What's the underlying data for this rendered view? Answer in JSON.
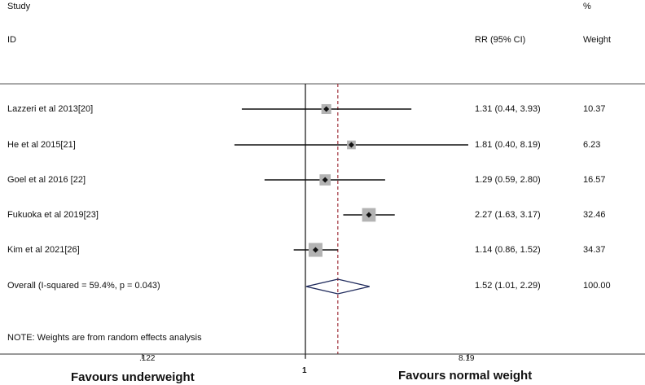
{
  "header": {
    "study_line1": "Study",
    "study_line2": "ID",
    "rr_label": "RR (95% CI)",
    "weight_line1": "%",
    "weight_line2": "Weight"
  },
  "chart_data": {
    "type": "forest",
    "effect_measure": "RR",
    "null_value": 1,
    "overall_line_value": 1.52,
    "x_scale": "log",
    "xlim": [
      0.122,
      8.19
    ],
    "x_ticks": [
      {
        "value": 0.122,
        "label": ".122"
      },
      {
        "value": 1,
        "label": "1"
      },
      {
        "value": 8.19,
        "label": "8.19"
      }
    ],
    "x_left_label": "Favours underweight",
    "x_right_label": "Favours normal weight",
    "studies": [
      {
        "label": "Lazzeri et al  2013[20]",
        "rr": 1.31,
        "lower": 0.44,
        "upper": 3.93,
        "ci_text": "1.31 (0.44, 3.93)",
        "weight": 10.37,
        "weight_text": "10.37"
      },
      {
        "label": "He et al 2015[21]",
        "rr": 1.81,
        "lower": 0.4,
        "upper": 8.19,
        "ci_text": "1.81 (0.40, 8.19)",
        "weight": 6.23,
        "weight_text": "6.23"
      },
      {
        "label": "Goel et al 2016 [22]",
        "rr": 1.29,
        "lower": 0.59,
        "upper": 2.8,
        "ci_text": "1.29 (0.59, 2.80)",
        "weight": 16.57,
        "weight_text": "16.57"
      },
      {
        "label": "Fukuoka et al 2019[23]",
        "rr": 2.27,
        "lower": 1.63,
        "upper": 3.17,
        "ci_text": "2.27 (1.63, 3.17)",
        "weight": 32.46,
        "weight_text": "32.46"
      },
      {
        "label": "Kim et al 2021[26]",
        "rr": 1.14,
        "lower": 0.86,
        "upper": 1.52,
        "ci_text": "1.14 (0.86, 1.52)",
        "weight": 34.37,
        "weight_text": "34.37"
      }
    ],
    "overall": {
      "label": "Overall  (I-squared = 59.4%, p = 0.043)",
      "rr": 1.52,
      "lower": 1.01,
      "upper": 2.29,
      "ci_text": "1.52 (1.01, 2.29)",
      "weight_text": "100.00"
    },
    "note": "NOTE: Weights are from random effects analysis",
    "colors": {
      "ci_line": "#111111",
      "box": "#b3b3b3",
      "point": "#111111",
      "diamond": "#1f2a5c",
      "overall_line": "#a0303a",
      "axis": "#111111"
    }
  }
}
